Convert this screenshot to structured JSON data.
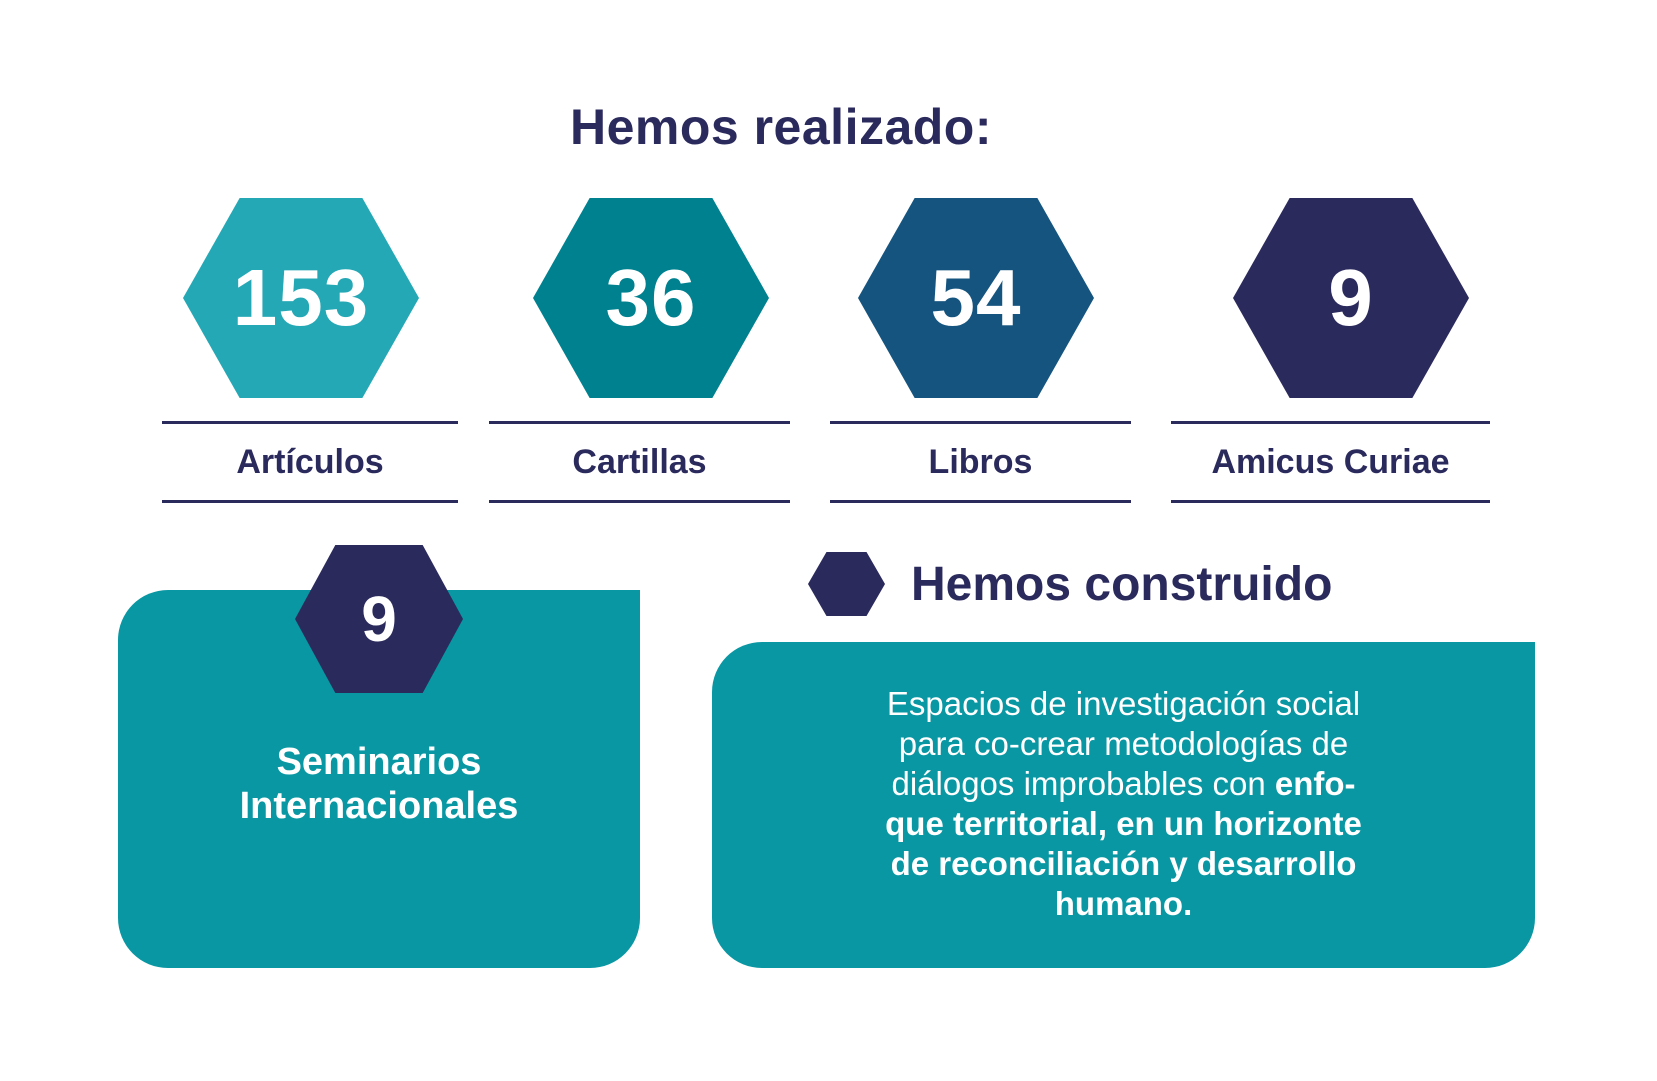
{
  "page": {
    "title": "Hemos realizado:"
  },
  "colors": {
    "navy": "#2B2A5C",
    "teal_light": "#25A8B5",
    "teal_dark": "#00818F",
    "steel_blue": "#15547F",
    "box_teal": "#0997A3",
    "text_white": "#FFFFFF"
  },
  "stats": [
    {
      "value": "153",
      "label": "Artículos",
      "color": "#25A8B5"
    },
    {
      "value": "36",
      "label": "Cartillas",
      "color": "#00818F"
    },
    {
      "value": "54",
      "label": "Libros",
      "color": "#15547F"
    },
    {
      "value": "9",
      "label": "Amicus Curiae",
      "color": "#2B2A5C"
    }
  ],
  "seminars": {
    "value": "9",
    "label_line1": "Seminarios",
    "label_line2": "Internacionales"
  },
  "built": {
    "heading": "Hemos construido",
    "body": {
      "line1": "Espacios de investigación social",
      "line2": "para co-crear metodologías de",
      "line3_regular": "diálogos improbables con ",
      "line3_bold": "enfo-",
      "line4": "que territorial, en un horizonte",
      "line5": "de reconciliación y desarrollo",
      "line6": "humano."
    }
  },
  "chart_data": {
    "type": "table",
    "title": "Hemos realizado:",
    "categories": [
      "Artículos",
      "Cartillas",
      "Libros",
      "Amicus Curiae",
      "Seminarios Internacionales"
    ],
    "values": [
      153,
      36,
      54,
      9,
      9
    ],
    "annotations": [
      "Hemos construido",
      "Espacios de investigación social para co-crear metodologías de diálogos improbables con enfoque territorial, en un horizonte de reconciliación y desarrollo humano."
    ],
    "legend_position": "none",
    "grid": false
  }
}
